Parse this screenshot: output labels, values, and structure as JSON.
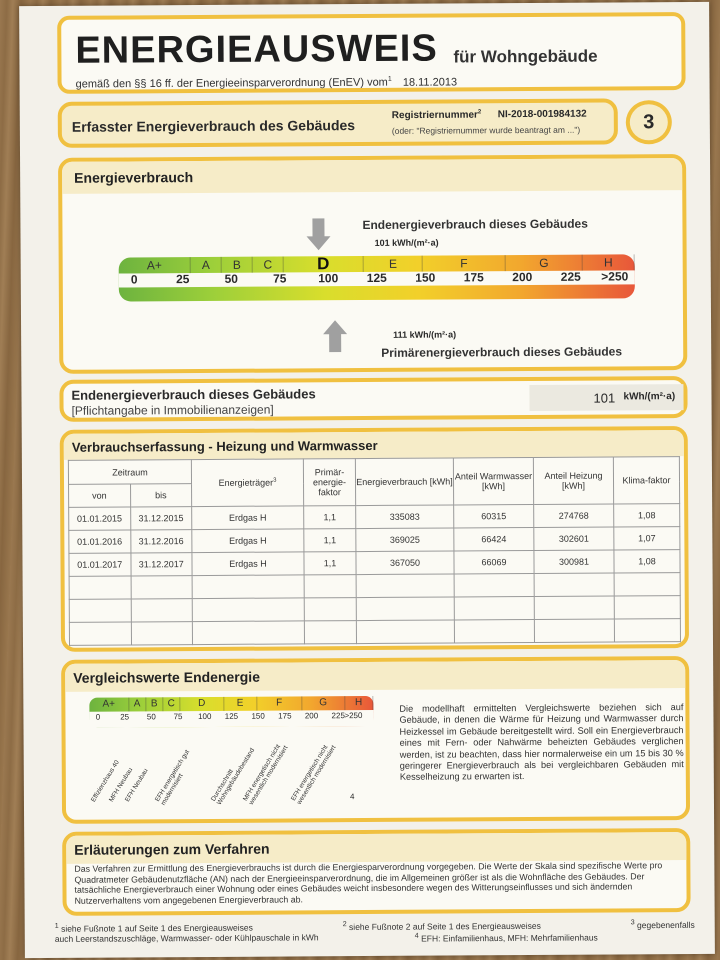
{
  "header": {
    "title": "ENERGIEAUSWEIS",
    "title_suffix": "für Wohngebäude",
    "subtitle": "gemäß den §§ 16 ff. der Energieeinsparverordnung (EnEV) vom",
    "fn1": "1",
    "date": "18.11.2013"
  },
  "section_bar": {
    "title": "Erfasster Energieverbrauch des Gebäudes",
    "reg_label": "Registriernummer",
    "fn2": "2",
    "reg_number": "NI-2018-001984132",
    "reg_note": "(oder: \"Registriernummer wurde beantragt am ...\")",
    "page": "3"
  },
  "energy": {
    "title": "Energieverbrauch",
    "end_label": "Endenergieverbrauch dieses Gebäudes",
    "end_value": "101 kWh/(m²·a)",
    "primary_value": "111 kWh/(m²·a)",
    "primary_label": "Primärenergieverbrauch dieses Gebäudes",
    "end_numeric": 101,
    "primary_numeric": 111,
    "current_class": "D",
    "classes": [
      "A+",
      "A",
      "B",
      "C",
      "D",
      "E",
      "F",
      "G",
      "H"
    ],
    "ticks": [
      "0",
      "25",
      "50",
      "75",
      "100",
      "125",
      "150",
      "175",
      "200",
      "225",
      ">250"
    ]
  },
  "summary": {
    "title": "Endenergieverbrauch dieses Gebäudes",
    "subtitle": "[Pflichtangabe in Immobilienanzeigen]",
    "value": "101",
    "unit": "kWh/(m²·a)"
  },
  "table": {
    "title": "Verbrauchserfassung - Heizung und Warmwasser",
    "h_zeitraum": "Zeitraum",
    "h_von": "von",
    "h_bis": "bis",
    "h_traeger": "Energieträger",
    "fn3": "3",
    "h_pef": "Primär-energie-faktor",
    "h_verbrauch": "Energieverbrauch [kWh]",
    "h_ww": "Anteil Warmwasser [kWh]",
    "h_heiz": "Anteil Heizung [kWh]",
    "h_klima": "Klima-faktor",
    "rows": [
      {
        "von": "01.01.2015",
        "bis": "31.12.2015",
        "traeger": "Erdgas H",
        "pef": "1,1",
        "verbrauch": "335083",
        "ww": "60315",
        "heiz": "274768",
        "klima": "1,08"
      },
      {
        "von": "01.01.2016",
        "bis": "31.12.2016",
        "traeger": "Erdgas H",
        "pef": "1,1",
        "verbrauch": "369025",
        "ww": "66424",
        "heiz": "302601",
        "klima": "1,07"
      },
      {
        "von": "01.01.2017",
        "bis": "31.12.2017",
        "traeger": "Erdgas H",
        "pef": "1,1",
        "verbrauch": "367050",
        "ww": "66069",
        "heiz": "300981",
        "klima": "1,08"
      }
    ]
  },
  "compare": {
    "title": "Vergleichswerte Endenergie",
    "classes": [
      "A+",
      "A",
      "B",
      "C",
      "D",
      "E",
      "F",
      "G",
      "H"
    ],
    "ticks": [
      "0",
      "25",
      "50",
      "75",
      "100",
      "125",
      "150",
      "175",
      "200",
      "225",
      ">250"
    ],
    "labels": [
      "Effizienzhaus 40",
      "MFH Neubau",
      "EFH Neubau",
      "EFH energetisch gut modernisiert",
      "Durchschnitt Wohngebäudebestand",
      "MFH energetisch nicht wesentlich modernisiert",
      "EFH energetisch nicht wesentlich modernisiert"
    ],
    "fn4": "4",
    "text": "Die modellhaft ermittelten Vergleichswerte beziehen sich auf Gebäude, in denen die Wärme für Heizung und Warmwasser durch Heizkessel im Gebäude bereitgestellt wird. Soll ein Energieverbrauch eines mit Fern- oder Nahwärme beheizten Gebäudes verglichen werden, ist zu beachten, dass hier normalerweise ein um 15 bis 30 % geringerer Energieverbrauch als bei vergleichbaren Gebäuden mit Kesselheizung zu erwarten ist."
  },
  "explain": {
    "title": "Erläuterungen zum Verfahren",
    "text": "Das Verfahren zur Ermittlung des Energieverbrauchs ist durch die Energiesparverordnung vorgegeben. Die Werte der Skala sind spezifische Werte pro Quadratmeter Gebäudenutzfläche (AN) nach der Energieeinsparverordnung, die im Allgemeinen größer ist als die Wohnfläche des Gebäudes. Der tatsächliche Energieverbrauch einer Wohnung oder eines Gebäudes weicht insbesondere wegen des Witterungseinflusses und sich ändernden Nutzerverhaltens vom angegebenen Energieverbrauch ab."
  },
  "footer": {
    "f1": "siehe Fußnote 1 auf Seite 1 des Energieausweises",
    "f2": "siehe Fußnote 2 auf Seite 1 des Energieausweises",
    "f3": "gegebenenfalls",
    "f3b": "auch Leerstandszuschläge, Warmwasser- oder Kühlpauschale in kWh",
    "f4": "EFH: Einfamilienhaus, MFH: Mehrfamilienhaus"
  }
}
